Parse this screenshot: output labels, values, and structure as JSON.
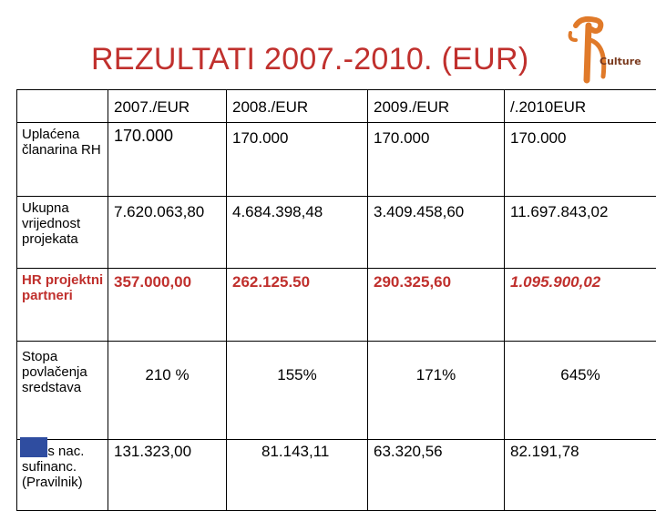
{
  "slide": {
    "title": "REZULTATI 2007.-2010. (EUR)",
    "logo_text": "Culture"
  },
  "table": {
    "headers": [
      "",
      "2007./EUR",
      "2008./EUR",
      "2009./EUR",
      "/.2010EUR"
    ],
    "rows": [
      {
        "label": "Uplaćena članarina RH",
        "values": [
          "170.000",
          "170.000",
          "170.000",
          "170.000"
        ]
      },
      {
        "label": "Ukupna vrijednost projekata",
        "values": [
          "7.620.063,80",
          "4.684.398,48",
          "3.409.458,60",
          "11.697.843,02"
        ]
      },
      {
        "label": "HR projektni partneri",
        "values": [
          "357.000,00",
          "262.125.50",
          "290.325,60",
          "1.095.900,02"
        ]
      },
      {
        "label": "Stopa povlačenja sredstava",
        "values": [
          "210 %",
          "155%",
          "171%",
          "645%"
        ]
      },
      {
        "label": "Iznos nac. sufinanc. (Pravilnik)",
        "values": [
          "131.323,00",
          "81.143,11",
          "63.320,56",
          "82.191,78"
        ]
      }
    ]
  },
  "colors": {
    "title": "#c0302d",
    "highlight": "#c0302d",
    "logo": "#e07a2a"
  }
}
